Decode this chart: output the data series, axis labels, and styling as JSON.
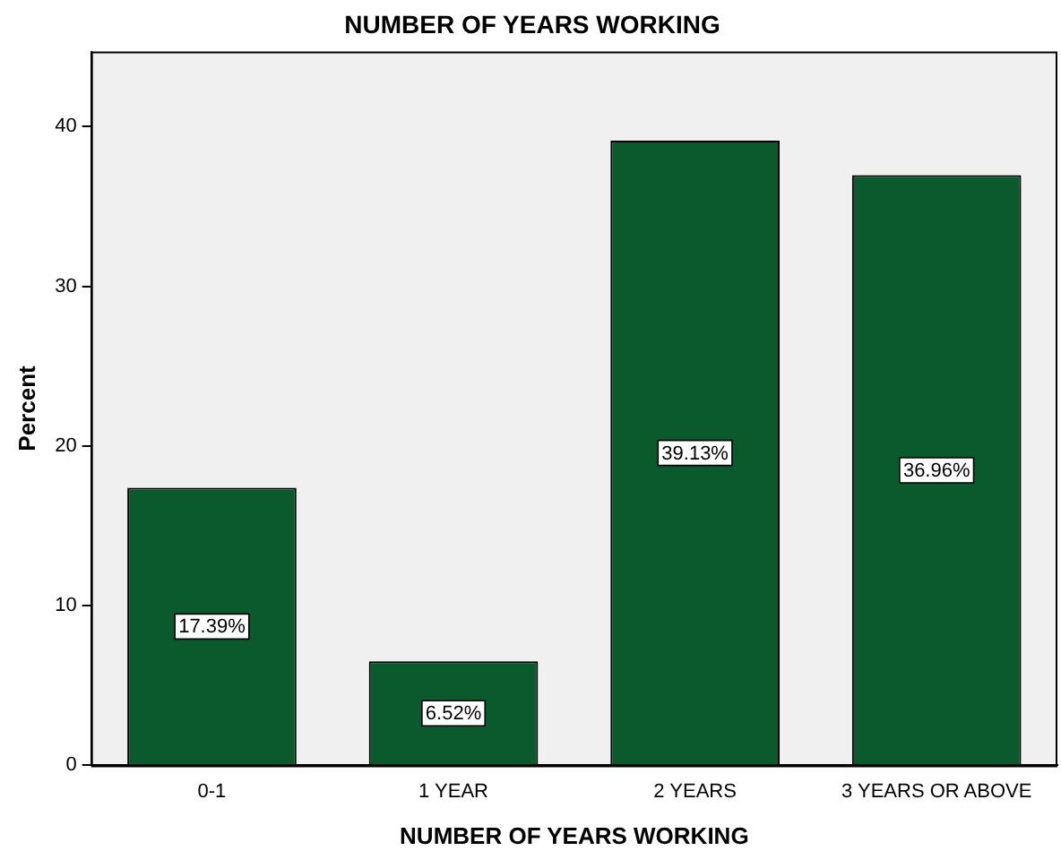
{
  "chart_data": {
    "type": "bar",
    "title": "NUMBER OF YEARS WORKING",
    "xlabel": "NUMBER OF YEARS WORKING",
    "ylabel": "Percent",
    "categories": [
      "0-1",
      "1 YEAR",
      "2 YEARS",
      "3 YEARS OR ABOVE"
    ],
    "values": [
      17.39,
      6.52,
      39.13,
      36.96
    ],
    "color": "#0b5a2e",
    "value_labels": [
      "17.39%",
      "6.52%",
      "39.13%",
      "36.96%"
    ],
    "ylim": [
      0,
      44.7
    ],
    "yticks": [
      0,
      10,
      20,
      30,
      40
    ],
    "grid": false,
    "legend": false
  }
}
